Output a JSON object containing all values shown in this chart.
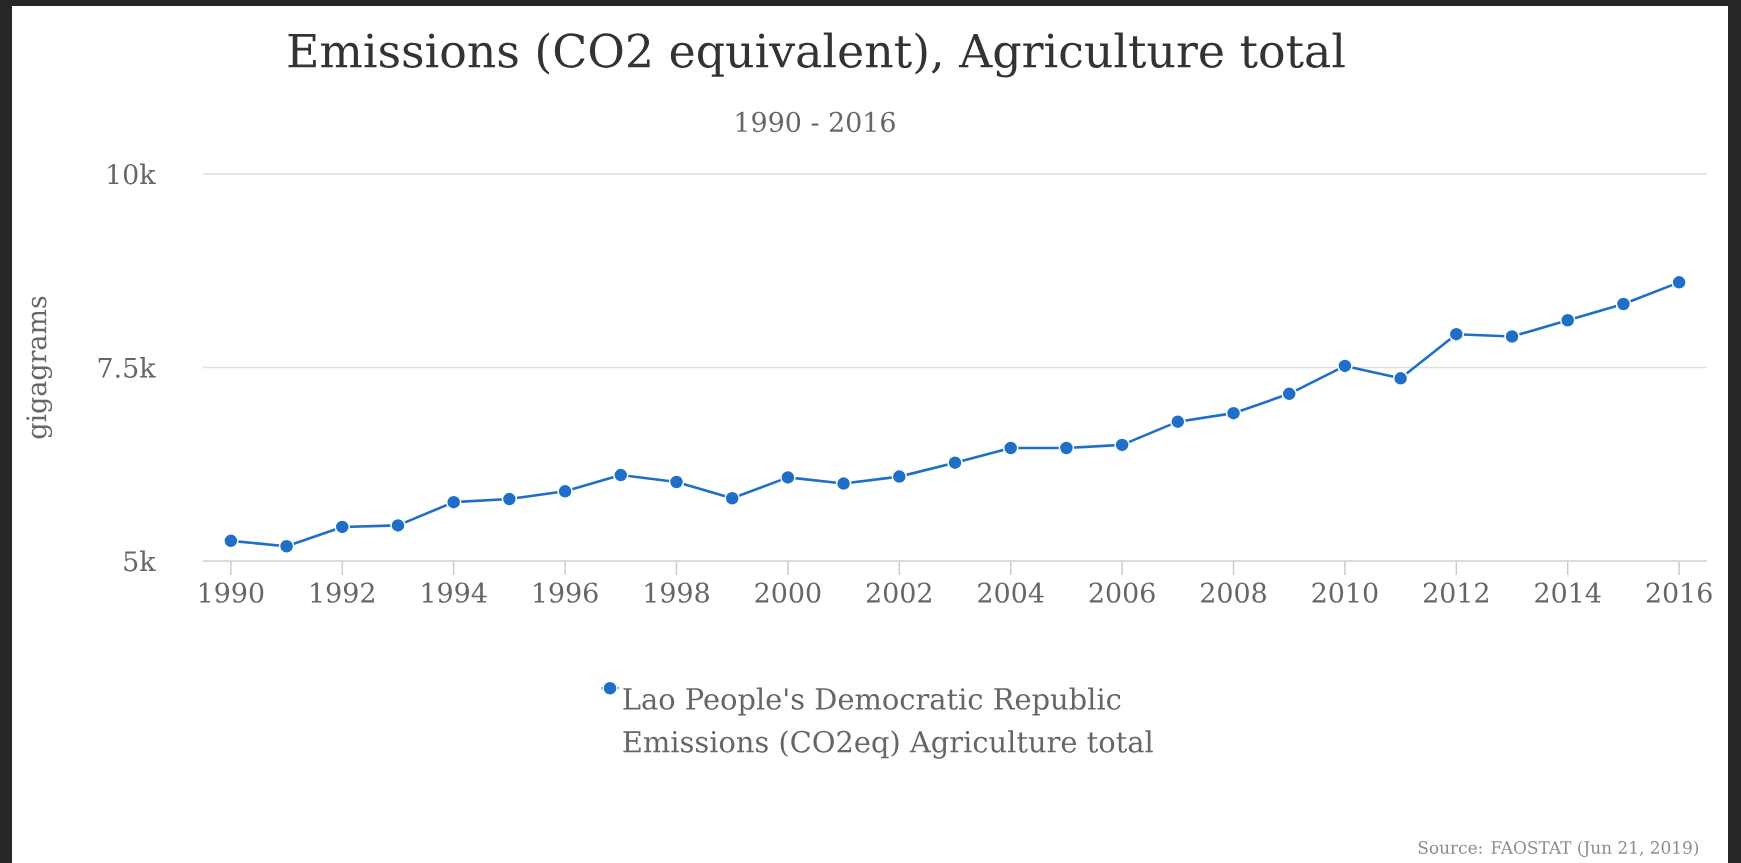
{
  "chart_data": {
    "type": "line",
    "title": "Emissions (CO2 equivalent), Agriculture total",
    "subtitle": "1990 - 2016",
    "ylabel": "gigagrams",
    "x": [
      1990,
      1991,
      1992,
      1993,
      1994,
      1995,
      1996,
      1997,
      1998,
      1999,
      2000,
      2001,
      2002,
      2003,
      2004,
      2005,
      2006,
      2007,
      2008,
      2009,
      2010,
      2011,
      2012,
      2013,
      2014,
      2015,
      2016
    ],
    "series": [
      {
        "name": "Lao People's Democratic Republic Emissions (CO2eq) Agriculture total",
        "color": "#1f6fc8",
        "values": [
          5260,
          5190,
          5440,
          5460,
          5760,
          5800,
          5900,
          6110,
          6020,
          5810,
          6080,
          6000,
          6090,
          6270,
          6460,
          6460,
          6500,
          6800,
          6910,
          7160,
          7520,
          7360,
          7930,
          7900,
          8110,
          8320,
          8600
        ]
      }
    ],
    "xlim": [
      1989.5,
      2016.5
    ],
    "xticks": [
      1990,
      1992,
      1994,
      1996,
      1998,
      2000,
      2002,
      2004,
      2006,
      2008,
      2010,
      2012,
      2014,
      2016
    ],
    "ylim": [
      5000,
      10000
    ],
    "yticks": [
      {
        "value": 5000,
        "label": "5k"
      },
      {
        "value": 7500,
        "label": "7.5k"
      },
      {
        "value": 10000,
        "label": "10k"
      }
    ],
    "grid": "y",
    "legend": "bottom",
    "marker": "circle",
    "line_style": "solid",
    "annotations": [
      "Source: FAOSTAT (Jun 21, 2019)"
    ]
  }
}
